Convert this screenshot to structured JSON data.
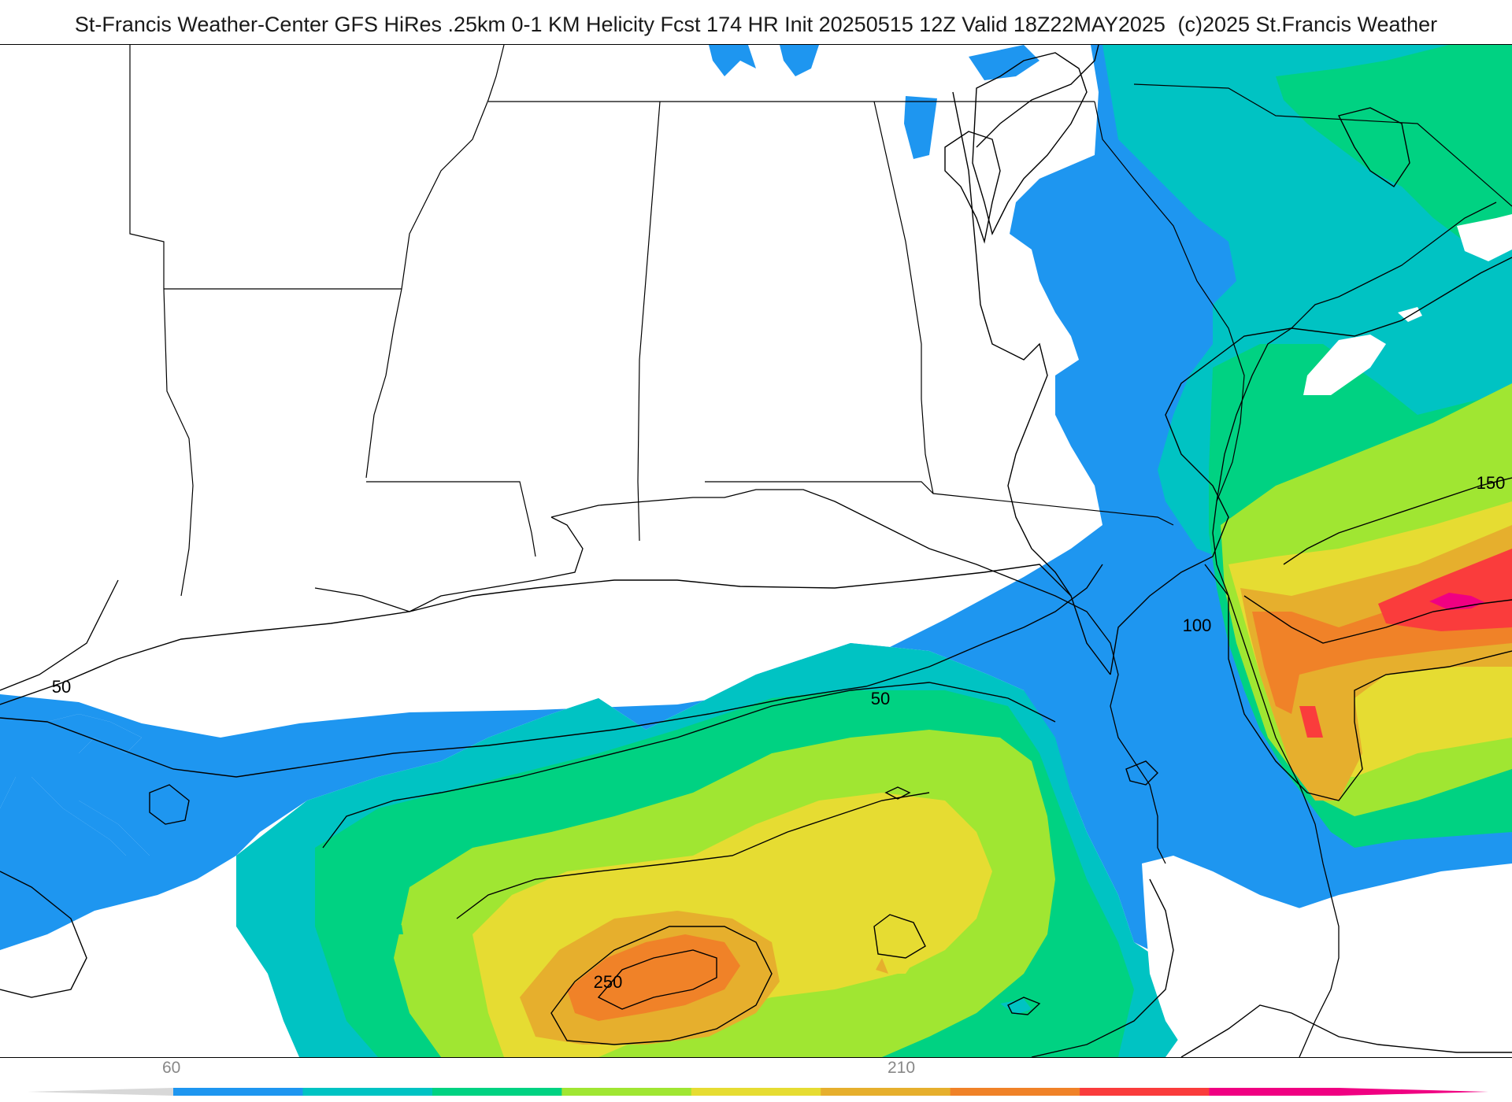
{
  "header": {
    "title_main": "St-Francis Weather-Center GFS HiRes .25km 0-1 KM Helicity Fcst 174 HR Init 20250515 12Z  Valid 18Z22MAY2025",
    "copyright": "(c)2025 St.Francis Weather"
  },
  "map": {
    "field": "0-1 KM Helicity",
    "contour_labels": [
      "50",
      "50",
      "100",
      "150",
      "250"
    ]
  },
  "legend": {
    "tick_labels": [
      "60",
      "210"
    ],
    "colors": [
      "#1e96f0",
      "#00c3c3",
      "#00d282",
      "#a0e632",
      "#e6dc32",
      "#e6af2d",
      "#f08228",
      "#fa3c3c",
      "#f00082"
    ]
  },
  "colors": {
    "blue": "#1e96f0",
    "teal": "#00c3c3",
    "green": "#00d282",
    "lime": "#a0e632",
    "yellow": "#e6dc32",
    "gold": "#e6af2d",
    "orange": "#f08228",
    "red": "#fa3c3c",
    "magenta": "#f00082"
  }
}
